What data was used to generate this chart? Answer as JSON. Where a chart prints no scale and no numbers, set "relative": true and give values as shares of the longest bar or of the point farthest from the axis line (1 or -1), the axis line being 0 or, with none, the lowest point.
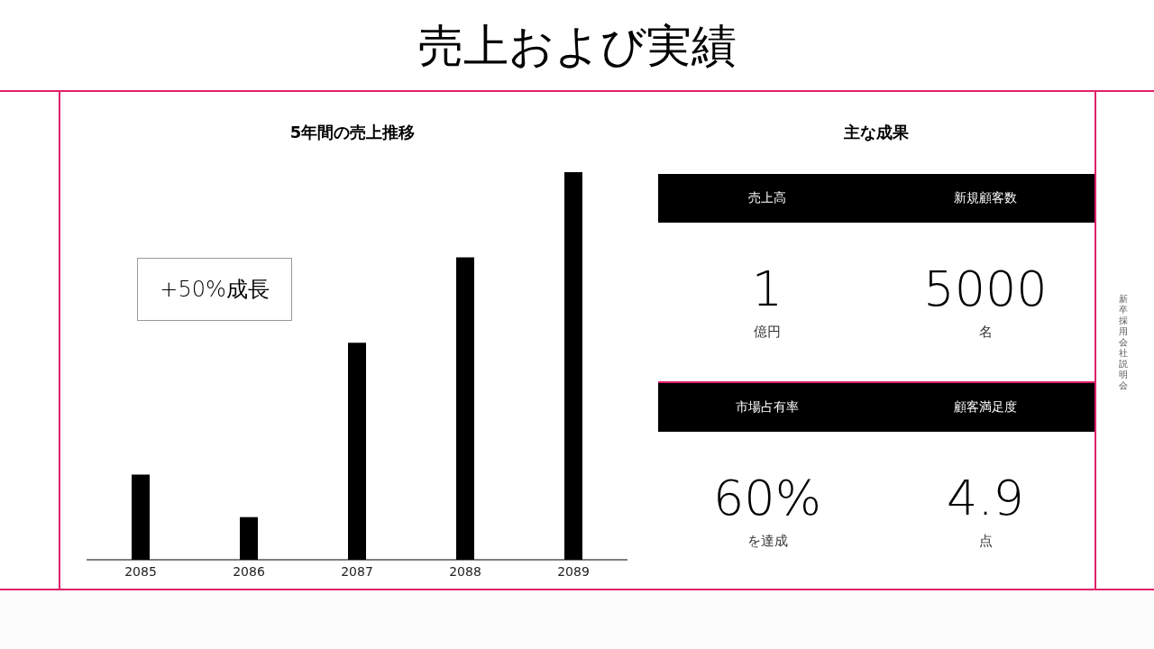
{
  "chart_data": [
    {
      "type": "other",
      "title": "売上および実績",
      "annotations": [
        "新卒採用会社説明会"
      ]
    },
    {
      "type": "bar",
      "title": "5年間の売上推移",
      "categories": [
        "2085",
        "2086",
        "2087",
        "2088",
        "2089"
      ],
      "values": [
        0.22,
        0.11,
        0.56,
        0.78,
        1
      ],
      "color": "#000000",
      "relative": true,
      "grid": false,
      "legend": false,
      "annotations": [
        "+50%成長"
      ]
    },
    {
      "type": "other",
      "title": "主な成果",
      "annotations": [
        "売上高",
        "新規顧客数",
        "1",
        "5000",
        "億円",
        "名",
        "市場占有率",
        "顧客満足度",
        "60%",
        "4.9",
        "を達成",
        "点"
      ]
    }
  ]
}
